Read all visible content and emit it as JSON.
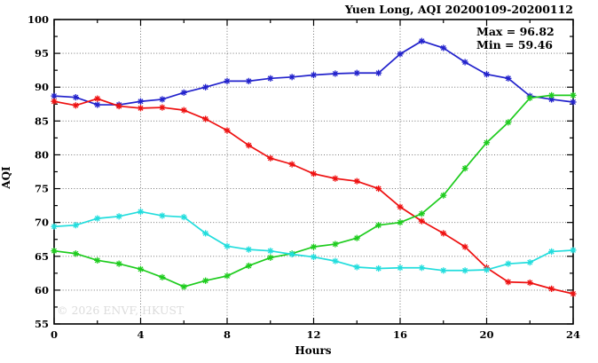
{
  "title": "Yuen Long, AQI 20200109-20200112",
  "annotation": {
    "max_label": "Max = 96.82",
    "min_label": "Min = 59.46"
  },
  "watermark": "© 2026 ENVF, HKUST",
  "chart_data": {
    "type": "line",
    "title": "Yuen Long, AQI 20200109-20200112",
    "xlabel": "Hours",
    "ylabel": "AQI",
    "xlim": [
      0,
      24
    ],
    "ylim": [
      55,
      100
    ],
    "x_major_step": 4,
    "x_minor_step": 2,
    "y_major_step": 5,
    "y_minor_step": 2.5,
    "grid": true,
    "legend": "none",
    "marker": "asterisk",
    "stats": {
      "max": 96.82,
      "min": 59.46
    },
    "x": [
      0,
      1,
      2,
      3,
      4,
      5,
      6,
      7,
      8,
      9,
      10,
      11,
      12,
      13,
      14,
      15,
      16,
      17,
      18,
      19,
      20,
      21,
      22,
      23,
      24
    ],
    "series": [
      {
        "name": "blue",
        "color": "#2222cc",
        "values": [
          88.7,
          88.5,
          87.4,
          87.4,
          87.9,
          88.2,
          89.2,
          90.0,
          90.9,
          90.9,
          91.3,
          91.5,
          91.8,
          92.0,
          92.1,
          92.1,
          94.9,
          96.82,
          95.8,
          93.7,
          91.9,
          91.3,
          88.7,
          88.2,
          87.8
        ]
      },
      {
        "name": "red",
        "color": "#ee1111",
        "values": [
          87.9,
          87.3,
          88.3,
          87.2,
          86.9,
          87.0,
          86.6,
          85.3,
          83.6,
          81.4,
          79.5,
          78.6,
          77.2,
          76.5,
          76.1,
          75.0,
          72.3,
          70.2,
          68.4,
          66.4,
          63.3,
          61.2,
          61.1,
          60.2,
          59.46
        ]
      },
      {
        "name": "green",
        "color": "#1ecc1e",
        "values": [
          65.8,
          65.4,
          64.4,
          63.9,
          63.1,
          61.9,
          60.5,
          61.4,
          62.1,
          63.6,
          64.8,
          65.4,
          66.4,
          66.8,
          67.7,
          69.6,
          70.0,
          71.3,
          74.0,
          78.0,
          81.8,
          84.8,
          88.4,
          88.8,
          88.8
        ]
      },
      {
        "name": "cyan",
        "color": "#22dddd",
        "values": [
          69.4,
          69.6,
          70.6,
          70.9,
          71.6,
          71.0,
          70.8,
          68.4,
          66.5,
          66.0,
          65.8,
          65.3,
          64.9,
          64.3,
          63.4,
          63.2,
          63.3,
          63.3,
          62.9,
          62.9,
          63.0,
          63.9,
          64.1,
          65.7,
          65.9
        ]
      }
    ]
  }
}
